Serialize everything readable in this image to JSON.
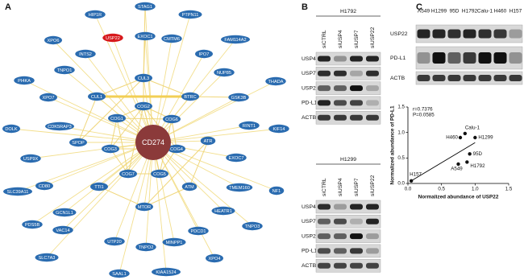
{
  "panel_labels": [
    "A",
    "B",
    "C"
  ],
  "network": {
    "center": "CD274",
    "nodes": [
      "STAG1",
      "HIP1R",
      "PTPN11",
      "USP22",
      "EXOC1",
      "CMTM6",
      "XPO6",
      "INTS2",
      "IPO7",
      "FAM114A2",
      "TNPO1",
      "NUP85",
      "CUL3",
      "PI4KA",
      "XPO7",
      "CUL1",
      "BTRC",
      "GSK3B",
      "THADA",
      "COG2",
      "COG1",
      "COG6",
      "RINT1",
      "KIF14",
      "DOLK",
      "CDK5RAP3",
      "SPOP",
      "COG3",
      "COG4",
      "ATR",
      "EXOC7",
      "USP9X",
      "SLC39A11",
      "CD80",
      "COG7",
      "COG5",
      "TTI1",
      "ATM",
      "TMEM160",
      "NF1",
      "GCN1L1",
      "PDS5B",
      "MTOR",
      "HEATR1",
      "TNPO3",
      "VAC14",
      "PDCD1",
      "SLC7A3",
      "UTP20",
      "TNPO2",
      "MINPP1",
      "XPO4",
      "SAAL1",
      "KIAA1524"
    ]
  },
  "blots_b": [
    {
      "cell_line": "H1792",
      "lanes": [
        "siCTRL",
        "siUSP4",
        "siUSP7",
        "siUSP22"
      ],
      "proteins": [
        "USP4",
        "USP7",
        "USP22",
        "PD-L1",
        "ACTB"
      ]
    },
    {
      "cell_line": "H1299",
      "lanes": [
        "siCTRL",
        "siUSP4",
        "siUSP7",
        "siUSP22"
      ],
      "proteins": [
        "USP4",
        "USP7",
        "USP22",
        "PD-L1",
        "ACTB"
      ]
    }
  ],
  "blot_c": {
    "lanes": [
      "A549",
      "H1299",
      "95D",
      "H1792",
      "Calu-1",
      "H460",
      "H157"
    ],
    "proteins": [
      "USP22",
      "PD-L1",
      "ACTB"
    ]
  },
  "chart_data": {
    "type": "scatter",
    "xlabel": "Normalized abundance of USP22",
    "ylabel": "Normalized abundance of PD-L1",
    "annotation": [
      "r=0.7376",
      "P=0.0585"
    ],
    "point_labels": [
      "H157",
      "A549",
      "H1792",
      "95D",
      "H460",
      "Calu-1",
      "H1299"
    ],
    "x": [
      0.05,
      0.75,
      0.88,
      0.92,
      0.78,
      0.85,
      1.0
    ],
    "values": [
      0.05,
      0.38,
      0.42,
      0.58,
      0.9,
      0.98,
      0.9
    ],
    "color": "#111111",
    "xlim": [
      0,
      1.5
    ],
    "ylim": [
      0,
      1.5
    ],
    "xticks": [
      {
        "value": 0,
        "label": "0.0"
      },
      0.5,
      {
        "value": 1,
        "label": "1.0"
      },
      1.5
    ],
    "yticks": [
      {
        "value": 0,
        "label": "0.0"
      },
      0.5,
      {
        "value": 1,
        "label": "1.0"
      },
      1.5
    ]
  }
}
